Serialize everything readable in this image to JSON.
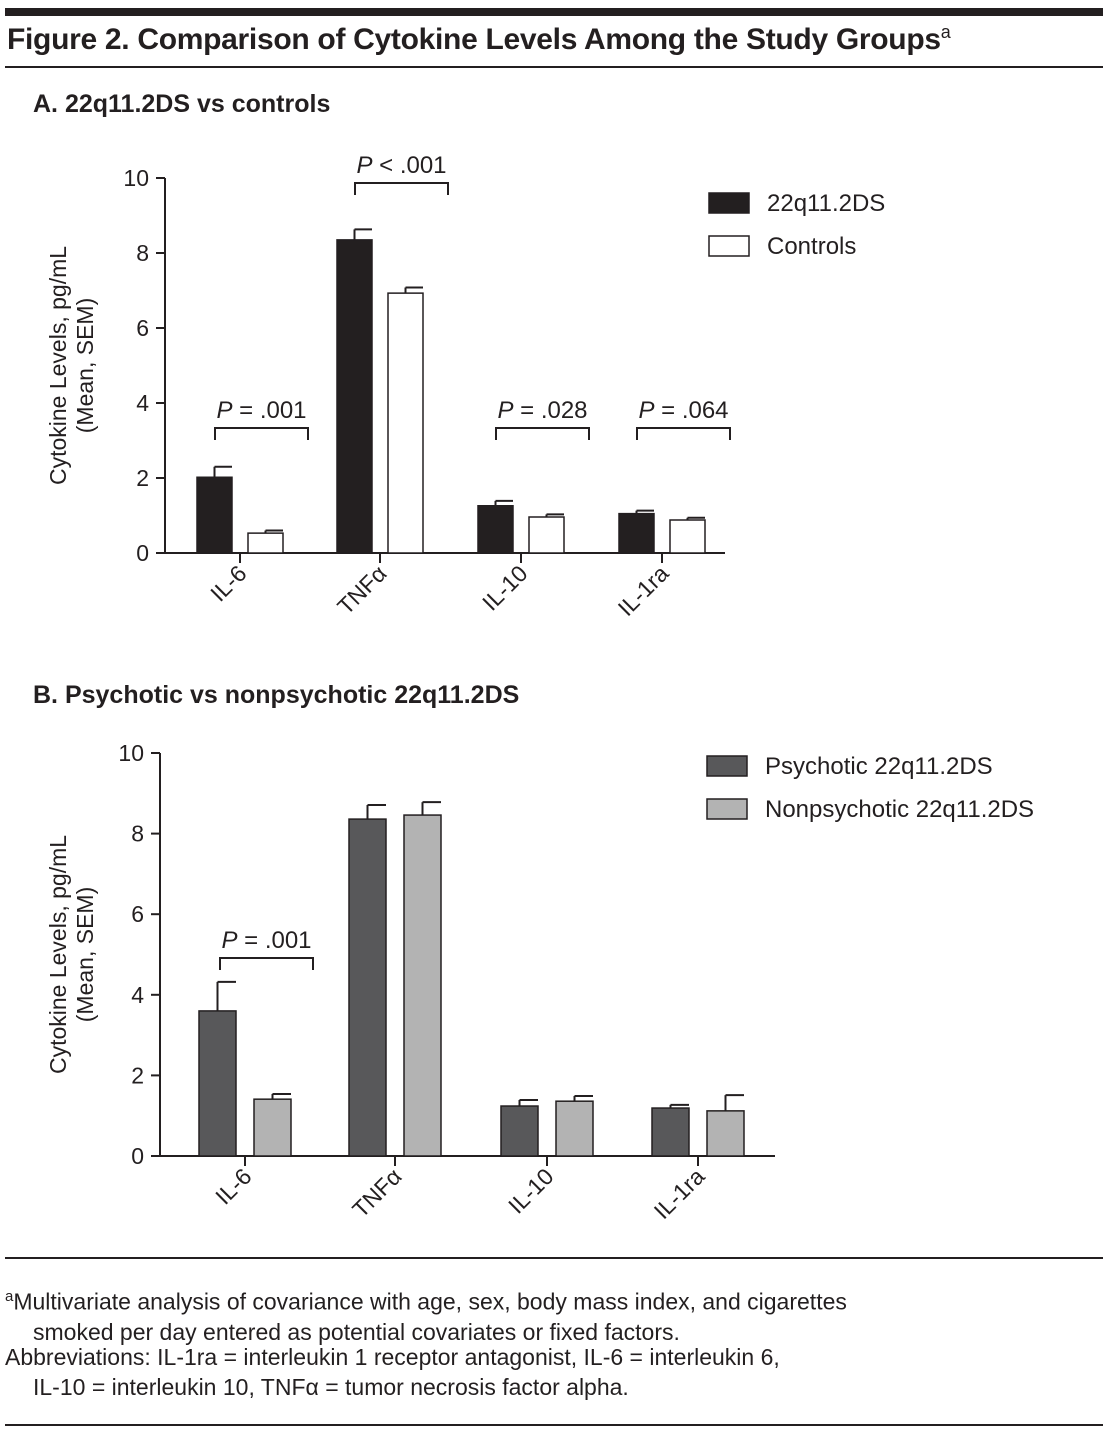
{
  "figure": {
    "title": "Figure 2. Comparison of Cytokine Levels Among the Study Groups",
    "title_sup": "a"
  },
  "chart_data": [
    {
      "type": "bar",
      "title": "A. 22q11.2DS vs controls",
      "ylabel": [
        "Cytokine Levels, pg/mL",
        "(Mean, SEM)"
      ],
      "xlabel": "",
      "ylim": [
        0,
        10
      ],
      "yticks": [
        0,
        2,
        4,
        6,
        8,
        10
      ],
      "categories": [
        "IL-6",
        "TNFα",
        "IL-10",
        "IL-1ra"
      ],
      "series": [
        {
          "name": "22q11.2DS",
          "color": "#231f20",
          "values": [
            2.02,
            8.35,
            1.26,
            1.05
          ],
          "sem": [
            0.28,
            0.28,
            0.13,
            0.08
          ]
        },
        {
          "name": "Controls",
          "color": "#ffffff",
          "values": [
            0.53,
            6.93,
            0.96,
            0.88
          ],
          "sem": [
            0.07,
            0.15,
            0.07,
            0.06
          ]
        }
      ],
      "annotations": [
        {
          "category": "IL-6",
          "text": "P = .001"
        },
        {
          "category": "TNFα",
          "text": "P < .001"
        },
        {
          "category": "IL-10",
          "text": "P = .028"
        },
        {
          "category": "IL-1ra",
          "text": "P = .064"
        }
      ],
      "legend_position": "top-right",
      "grid": false
    },
    {
      "type": "bar",
      "title": "B. Psychotic vs nonpsychotic 22q11.2DS",
      "ylabel": [
        "Cytokine Levels, pg/mL",
        "(Mean, SEM)"
      ],
      "xlabel": "",
      "ylim": [
        0,
        10
      ],
      "yticks": [
        0,
        2,
        4,
        6,
        8,
        10
      ],
      "categories": [
        "IL-6",
        "TNFα",
        "IL-10",
        "IL-1ra"
      ],
      "series": [
        {
          "name": "Psychotic 22q11.2DS",
          "color": "#58585a",
          "values": [
            3.6,
            8.36,
            1.24,
            1.19
          ],
          "sem": [
            0.72,
            0.35,
            0.15,
            0.08
          ]
        },
        {
          "name": "Nonpsychotic 22q11.2DS",
          "color": "#b3b3b3",
          "values": [
            1.41,
            8.46,
            1.36,
            1.12
          ],
          "sem": [
            0.13,
            0.32,
            0.13,
            0.39
          ]
        }
      ],
      "annotations": [
        {
          "category": "IL-6",
          "text": "P = .001"
        }
      ],
      "legend_position": "top-right",
      "grid": false
    }
  ],
  "footnotes": {
    "a_mark": "a",
    "a_line1": "Multivariate analysis of covariance with age, sex, body mass index, and cigarettes",
    "a_line2": "smoked per day entered as potential covariates or fixed factors.",
    "abbr_line1": "Abbreviations: IL-1ra = interleukin 1 receptor antagonist, IL-6 = interleukin 6,",
    "abbr_line2": "IL-10 = interleukin 10, TNFα = tumor necrosis factor alpha."
  }
}
